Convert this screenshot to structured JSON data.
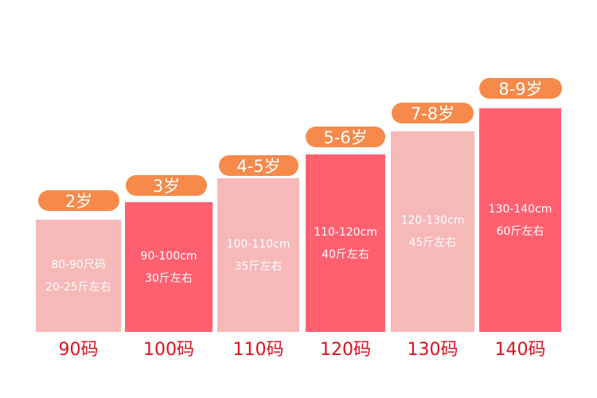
{
  "colors": {
    "light_bar": "#f7b8b8",
    "dark_bar": "#ff6070",
    "pill": "#f58a4a",
    "size_label": "#e0101f"
  },
  "items": [
    {
      "age": "2岁",
      "size_range": "80-90尺码",
      "weight": "20-25斤左右",
      "size": "90码",
      "shade": "light"
    },
    {
      "age": "3岁",
      "size_range": "90-100cm",
      "weight": "30斤左右",
      "size": "100码",
      "shade": "dark"
    },
    {
      "age": "4-5岁",
      "size_range": "100-110cm",
      "weight": "35斤左右",
      "size": "110码",
      "shade": "light"
    },
    {
      "age": "5-6岁",
      "size_range": "110-120cm",
      "weight": "40斤左右",
      "size": "120码",
      "shade": "dark"
    },
    {
      "age": "7-8岁",
      "size_range": "120-130cm",
      "weight": "45斤左右",
      "size": "130码",
      "shade": "light"
    },
    {
      "age": "8-9岁",
      "size_range": "130-140cm",
      "weight": "60斤左右",
      "size": "140码",
      "shade": "dark"
    }
  ]
}
